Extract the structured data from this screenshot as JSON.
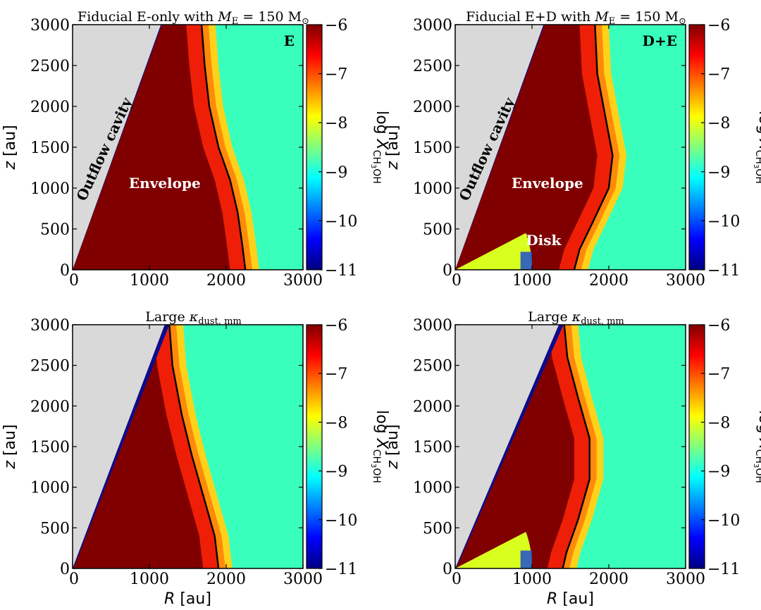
{
  "colors": {
    "cavity": "#d9d9d9",
    "background_gas": "#39ffbd",
    "envelope_core": "#800000",
    "disk": "#d9ff1f",
    "contour": "#000000",
    "cmap": [
      "#00007f",
      "#0000ff",
      "#007fff",
      "#00ffff",
      "#7fff7f",
      "#ffff00",
      "#ff7f00",
      "#ff0000",
      "#7f0000"
    ]
  },
  "chart_data": [
    {
      "type": "heatmap",
      "title": "Fiducial E-only with M_E = 150 M_⊙",
      "title_parts": {
        "text": "Fiducial E-only with ",
        "var": "M",
        "sub": "E",
        "rest": " = 150 M",
        "sun": "⊙"
      },
      "xlabel": "",
      "ylabel": "z [au]",
      "xlim": [
        0,
        3000
      ],
      "ylim": [
        0,
        3000
      ],
      "xticks": [
        "0",
        "1000",
        "2000",
        "3000"
      ],
      "yticks": [
        "0",
        "500",
        "1000",
        "1500",
        "2000",
        "2500",
        "3000"
      ],
      "colorbar": {
        "label": "log X_CH3OH",
        "range": [
          -11,
          -6
        ],
        "ticks": [
          "−6",
          "−7",
          "−8",
          "−9",
          "−10",
          "−11"
        ]
      },
      "annotations": {
        "tag": "E",
        "envelope": "Envelope",
        "cavity": "Outflow cavity"
      },
      "cavity_edge_top_R": 1150,
      "contour": [
        [
          2250,
          0
        ],
        [
          2210,
          300
        ],
        [
          2150,
          700
        ],
        [
          2050,
          1100
        ],
        [
          1900,
          1500
        ],
        [
          1780,
          2000
        ],
        [
          1720,
          2500
        ],
        [
          1680,
          3000
        ]
      ],
      "has_disk": false
    },
    {
      "type": "heatmap",
      "title": "Fiducial E+D with M_E = 150 M_⊙",
      "title_parts": {
        "text": "Fiducial E+D with ",
        "var": "M",
        "sub": "E",
        "rest": " = 150 M",
        "sun": "⊙"
      },
      "xlabel": "",
      "ylabel": "z [au]",
      "xlim": [
        0,
        3000
      ],
      "ylim": [
        0,
        3000
      ],
      "xticks": [
        "0",
        "1000",
        "2000",
        "3000"
      ],
      "yticks": [
        "0",
        "500",
        "1000",
        "1500",
        "2000",
        "2500",
        "3000"
      ],
      "colorbar": {
        "label": "log X_CH3OH",
        "range": [
          -11,
          -6
        ],
        "ticks": [
          "−6",
          "−7",
          "−8",
          "−9",
          "−10",
          "−11"
        ]
      },
      "annotations": {
        "tag": "D+E",
        "envelope": "Envelope",
        "cavity": "Outflow cavity",
        "disk": "Disk"
      },
      "cavity_edge_top_R": 1150,
      "contour": [
        [
          1550,
          0
        ],
        [
          1620,
          250
        ],
        [
          1800,
          600
        ],
        [
          2000,
          1000
        ],
        [
          2050,
          1400
        ],
        [
          1950,
          1900
        ],
        [
          1850,
          2400
        ],
        [
          1820,
          3000
        ]
      ],
      "has_disk": true,
      "disk_outer_R": 1000
    },
    {
      "type": "heatmap",
      "title": "Large κ_dust,mm",
      "title_parts": {
        "text": "Large ",
        "var": "κ",
        "sub": "dust, mm",
        "rest": "",
        "sun": ""
      },
      "xlabel": "R [au]",
      "ylabel": "z [au]",
      "xlim": [
        0,
        3000
      ],
      "ylim": [
        0,
        3000
      ],
      "xticks": [
        "0",
        "1000",
        "2000",
        "3000"
      ],
      "yticks": [
        "0",
        "500",
        "1000",
        "1500",
        "2000",
        "2500",
        "3000"
      ],
      "colorbar": {
        "label": "log X_CH3OH",
        "range": [
          -11,
          -6
        ],
        "ticks": [
          "−6",
          "−7",
          "−8",
          "−9",
          "−10",
          "−11"
        ]
      },
      "annotations": {},
      "cavity_edge_top_R": 1200,
      "contour": [
        [
          1900,
          0
        ],
        [
          1850,
          400
        ],
        [
          1700,
          900
        ],
        [
          1550,
          1400
        ],
        [
          1420,
          1900
        ],
        [
          1300,
          2500
        ],
        [
          1260,
          3000
        ]
      ],
      "has_disk": false
    },
    {
      "type": "heatmap",
      "title": "Large κ_dust,mm",
      "title_parts": {
        "text": "Large ",
        "var": "κ",
        "sub": "dust, mm",
        "rest": "",
        "sun": ""
      },
      "xlabel": "R [au]",
      "ylabel": "z [au]",
      "xlim": [
        0,
        3000
      ],
      "ylim": [
        0,
        3000
      ],
      "xticks": [
        "0",
        "1000",
        "2000",
        "3000"
      ],
      "yticks": [
        "0",
        "500",
        "1000",
        "1500",
        "2000",
        "2500",
        "3000"
      ],
      "colorbar": {
        "label": "log X_CH3OH",
        "range": [
          -11,
          -6
        ],
        "ticks": [
          "−6",
          "−7",
          "−8",
          "−9",
          "−10",
          "−11"
        ]
      },
      "annotations": {},
      "cavity_edge_top_R": 1350,
      "contour": [
        [
          1400,
          0
        ],
        [
          1450,
          200
        ],
        [
          1600,
          600
        ],
        [
          1750,
          1100
        ],
        [
          1750,
          1600
        ],
        [
          1600,
          2100
        ],
        [
          1460,
          2600
        ],
        [
          1420,
          3000
        ]
      ],
      "has_disk": true,
      "disk_outer_R": 1000
    }
  ]
}
